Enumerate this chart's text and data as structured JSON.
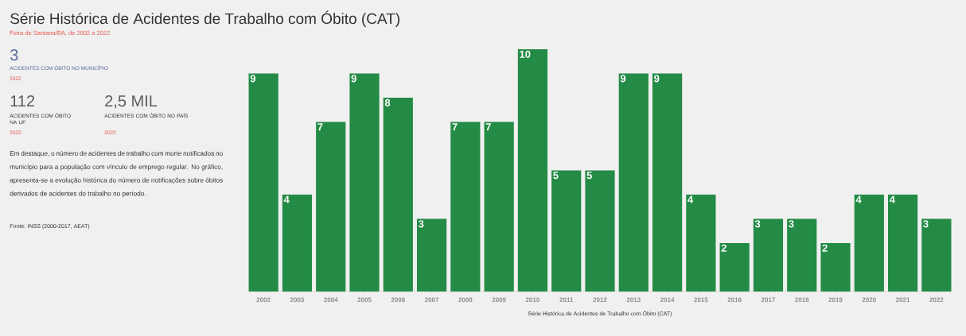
{
  "chart_data": {
    "type": "bar",
    "title": "Série Histórica de Acidentes de Trabalho com Óbito (CAT)",
    "subtitle": "Feira de Santana/BA, de 2002 a 2022",
    "xlabel": "Série Histórica de Acidentes de Trabalho com Óbito (CAT)",
    "categories": [
      "2002",
      "2003",
      "2004",
      "2005",
      "2006",
      "2007",
      "2008",
      "2009",
      "2010",
      "2011",
      "2012",
      "2013",
      "2014",
      "2015",
      "2016",
      "2017",
      "2018",
      "2019",
      "2020",
      "2021",
      "2022"
    ],
    "values": [
      9,
      4,
      7,
      9,
      8,
      3,
      7,
      7,
      10,
      5,
      5,
      9,
      9,
      4,
      2,
      3,
      3,
      2,
      4,
      4,
      3
    ],
    "color": "#238b45",
    "data_labels": true,
    "annotations": [
      "3",
      "ACIDENTES COM ÓBITO NO MUNICÍPIO",
      "2022",
      "112",
      "ACIDENTES COM ÓBITO NA UF",
      "2022",
      "2,5 MIL",
      "ACIDENTES COM ÓBITO NO PAÍS",
      "2022",
      "Em destaque, o número de acidentes de trabalho com morte notificados no município para a população com vínculo de emprego regular. No gráfico, apresenta-se a evolução histórica do número de notificações sobre óbitos derivados de acidentes do trabalho no período.",
      "Fonte: INSS (2000-2017, AEAT)"
    ]
  }
}
